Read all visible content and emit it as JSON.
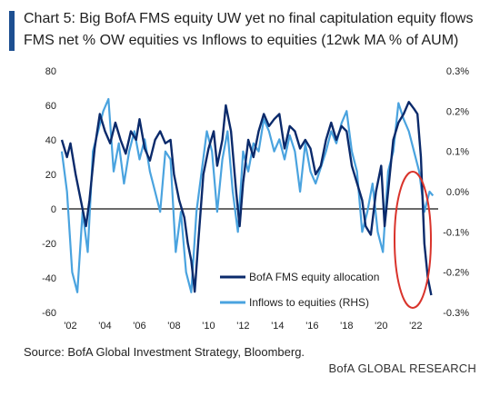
{
  "header": {
    "title": "Chart 5: Big BofA FMS equity UW yet no final capitulation equity flows",
    "subtitle": "FMS net % OW equities vs Inflows to equities (12wk MA % of AUM)"
  },
  "footer": {
    "source": "Source: BofA Global Investment Strategy, Bloomberg.",
    "brand": "BofA GLOBAL RESEARCH"
  },
  "colors": {
    "accent": "#1d4f91",
    "series1": "#0b2a6b",
    "series2": "#4aa3df",
    "annotation": "#d9332b"
  },
  "chart_data": {
    "type": "line",
    "y_left": {
      "ylim": [
        -60,
        80
      ],
      "ticks": [
        "80",
        "60",
        "40",
        "20",
        "0",
        "-20",
        "-40",
        "-60"
      ],
      "tick_values": [
        80,
        60,
        40,
        20,
        0,
        -20,
        -40,
        -60
      ]
    },
    "y_right": {
      "ylim": [
        -0.3,
        0.3
      ],
      "ticks": [
        "0.3%",
        "0.2%",
        "0.1%",
        "0.0%",
        "-0.1%",
        "-0.2%",
        "-0.3%"
      ],
      "tick_values": [
        0.3,
        0.2,
        0.1,
        0.0,
        -0.1,
        -0.2,
        -0.3
      ]
    },
    "x_axis": {
      "xlim": [
        2001.5,
        2023.3
      ],
      "tick_labels": [
        "'02",
        "'04",
        "'06",
        "'08",
        "'10",
        "'12",
        "'14",
        "'16",
        "'18",
        "'20",
        "'22"
      ],
      "tick_values": [
        2002,
        2004,
        2006,
        2008,
        2010,
        2012,
        2014,
        2016,
        2018,
        2020,
        2022
      ]
    },
    "legend": {
      "placement": "bottom-center"
    },
    "series": [
      {
        "name": "BofA FMS equity allocation",
        "axis": "left",
        "x": [
          2001.5,
          2001.8,
          2002.0,
          2002.3,
          2002.6,
          2002.9,
          2003.1,
          2003.4,
          2003.7,
          2004.0,
          2004.3,
          2004.6,
          2004.9,
          2005.2,
          2005.5,
          2005.8,
          2006.0,
          2006.3,
          2006.6,
          2006.9,
          2007.2,
          2007.5,
          2007.8,
          2008.0,
          2008.3,
          2008.6,
          2008.8,
          2009.0,
          2009.2,
          2009.4,
          2009.7,
          2010.0,
          2010.3,
          2010.5,
          2010.8,
          2011.0,
          2011.3,
          2011.6,
          2011.8,
          2012.0,
          2012.3,
          2012.6,
          2012.9,
          2013.2,
          2013.5,
          2013.8,
          2014.1,
          2014.4,
          2014.7,
          2015.0,
          2015.3,
          2015.6,
          2015.9,
          2016.2,
          2016.5,
          2016.8,
          2017.1,
          2017.4,
          2017.7,
          2018.0,
          2018.3,
          2018.6,
          2018.9,
          2019.1,
          2019.4,
          2019.7,
          2020.0,
          2020.2,
          2020.4,
          2020.7,
          2021.0,
          2021.3,
          2021.6,
          2021.9,
          2022.1,
          2022.3,
          2022.5,
          2022.7,
          2022.9
        ],
        "values": [
          40,
          30,
          38,
          20,
          5,
          -10,
          5,
          35,
          55,
          45,
          38,
          50,
          40,
          32,
          45,
          40,
          52,
          35,
          28,
          40,
          45,
          38,
          40,
          20,
          5,
          -5,
          -20,
          -30,
          -48,
          -20,
          20,
          35,
          45,
          25,
          40,
          60,
          45,
          10,
          -10,
          15,
          40,
          30,
          45,
          55,
          48,
          52,
          55,
          35,
          48,
          45,
          35,
          40,
          35,
          20,
          25,
          40,
          50,
          40,
          48,
          45,
          25,
          15,
          5,
          -10,
          -15,
          10,
          25,
          -10,
          10,
          40,
          50,
          55,
          62,
          58,
          55,
          30,
          -20,
          -40,
          -50
        ]
      },
      {
        "name": "Inflows to equities (RHS)",
        "axis": "right",
        "x": [
          2001.5,
          2001.8,
          2002.1,
          2002.4,
          2002.7,
          2003.0,
          2003.3,
          2003.6,
          2003.9,
          2004.2,
          2004.5,
          2004.8,
          2005.1,
          2005.4,
          2005.7,
          2006.0,
          2006.3,
          2006.6,
          2006.9,
          2007.2,
          2007.5,
          2007.8,
          2008.1,
          2008.4,
          2008.7,
          2009.0,
          2009.3,
          2009.6,
          2009.9,
          2010.2,
          2010.5,
          2010.8,
          2011.1,
          2011.4,
          2011.7,
          2012.0,
          2012.3,
          2012.6,
          2012.9,
          2013.2,
          2013.5,
          2013.8,
          2014.1,
          2014.4,
          2014.7,
          2015.0,
          2015.3,
          2015.6,
          2015.9,
          2016.2,
          2016.5,
          2016.8,
          2017.1,
          2017.4,
          2017.7,
          2018.0,
          2018.3,
          2018.6,
          2018.9,
          2019.2,
          2019.5,
          2019.8,
          2020.1,
          2020.4,
          2020.7,
          2021.0,
          2021.3,
          2021.6,
          2021.9,
          2022.2,
          2022.5,
          2022.8,
          2023.0
        ],
        "values": [
          0.1,
          0.0,
          -0.2,
          -0.25,
          -0.05,
          -0.15,
          0.1,
          0.15,
          0.2,
          0.23,
          0.05,
          0.12,
          0.02,
          0.1,
          0.15,
          0.08,
          0.13,
          0.05,
          0.0,
          -0.05,
          0.1,
          0.08,
          -0.15,
          -0.05,
          -0.2,
          -0.25,
          -0.05,
          0.05,
          0.15,
          0.1,
          -0.05,
          0.08,
          0.15,
          0.0,
          -0.1,
          0.1,
          0.05,
          0.12,
          0.1,
          0.18,
          0.15,
          0.1,
          0.13,
          0.08,
          0.14,
          0.1,
          0.0,
          0.12,
          0.05,
          0.02,
          0.06,
          0.1,
          0.15,
          0.12,
          0.17,
          0.2,
          0.1,
          0.05,
          -0.1,
          -0.05,
          0.02,
          -0.1,
          -0.15,
          0.05,
          0.1,
          0.22,
          0.18,
          0.15,
          0.1,
          0.05,
          -0.05,
          0.0,
          -0.01
        ]
      }
    ]
  }
}
